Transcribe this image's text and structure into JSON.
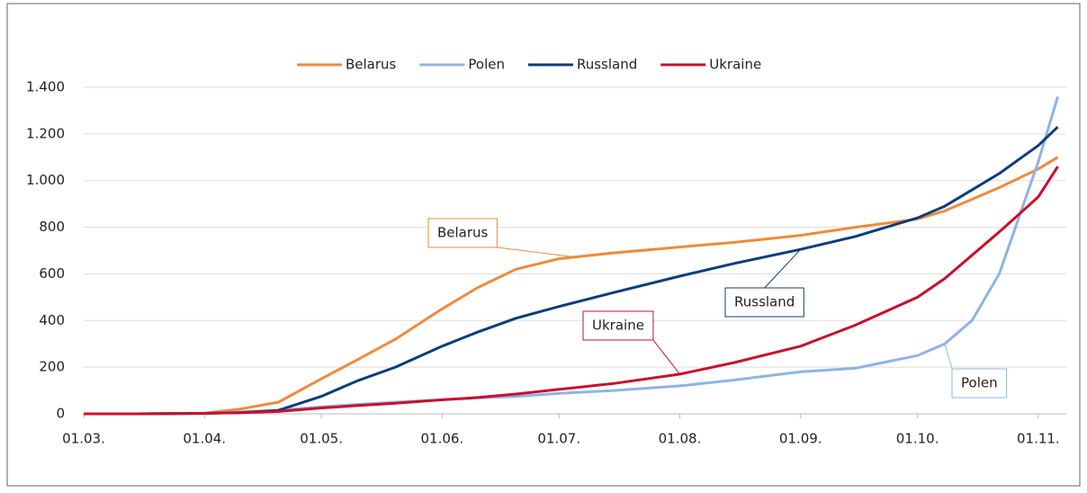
{
  "chart_data": {
    "type": "line",
    "x": [
      "01.03.",
      "15.03.",
      "01.04.",
      "10.04.",
      "20.04.",
      "01.05.",
      "10.05.",
      "20.05.",
      "01.06.",
      "10.06.",
      "20.06.",
      "01.07.",
      "15.07.",
      "01.08.",
      "15.08.",
      "01.09.",
      "15.09.",
      "01.10.",
      "08.10.",
      "15.10.",
      "22.10.",
      "01.11.",
      "06.11."
    ],
    "series": [
      {
        "name": "Belarus",
        "color": "#f08a3c",
        "values": [
          0,
          0,
          3,
          20,
          50,
          150,
          230,
          320,
          450,
          540,
          620,
          665,
          690,
          715,
          735,
          765,
          800,
          835,
          870,
          920,
          970,
          1050,
          1100
        ]
      },
      {
        "name": "Polen",
        "color": "#8eb4e3",
        "values": [
          0,
          0,
          3,
          8,
          15,
          30,
          40,
          50,
          60,
          68,
          75,
          88,
          100,
          120,
          145,
          180,
          195,
          250,
          300,
          400,
          600,
          1080,
          1360
        ]
      },
      {
        "name": "Russland",
        "color": "#0d3d7a",
        "values": [
          0,
          0,
          2,
          5,
          15,
          75,
          140,
          200,
          290,
          350,
          410,
          460,
          520,
          590,
          645,
          705,
          760,
          840,
          890,
          960,
          1030,
          1150,
          1230
        ]
      },
      {
        "name": "Ukraine",
        "color": "#c8102e",
        "values": [
          0,
          0,
          2,
          5,
          10,
          25,
          35,
          45,
          60,
          70,
          85,
          105,
          130,
          170,
          220,
          290,
          380,
          500,
          580,
          680,
          780,
          930,
          1060
        ]
      }
    ],
    "xlim": [
      "01.03.",
      "06.11."
    ],
    "xticks": [
      "01.03.",
      "01.04.",
      "01.05.",
      "01.06.",
      "01.07.",
      "01.08.",
      "01.09.",
      "01.10.",
      "01.11."
    ],
    "ylim": [
      0,
      1400
    ],
    "yticks": [
      0,
      200,
      400,
      600,
      800,
      {
        "value": 1000,
        "label": "1.000"
      },
      {
        "value": 1200,
        "label": "1.200"
      },
      {
        "value": 1400,
        "label": "1.400"
      }
    ],
    "grid": true,
    "legend": "top",
    "annotations": [
      {
        "text": "Belarus",
        "series": 0,
        "at": "05.07."
      },
      {
        "text": "Russland",
        "series": 2,
        "at": "01.09."
      },
      {
        "text": "Ukraine",
        "series": 3,
        "at": "01.08."
      },
      {
        "text": "Polen",
        "series": 1,
        "at": "08.10."
      }
    ]
  }
}
